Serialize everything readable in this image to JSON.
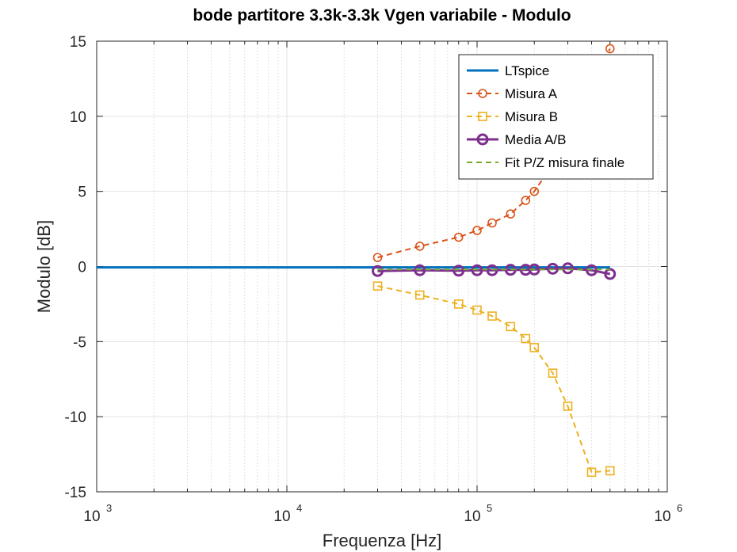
{
  "chart_data": {
    "type": "line",
    "title": "bode partitore 3.3k-3.3k Vgen variabile - Modulo",
    "xlabel": "Frequenza [Hz]",
    "ylabel": "Modulo [dB]",
    "xscale": "log",
    "xlim": [
      1000,
      1000000
    ],
    "ylim": [
      -15,
      15
    ],
    "xticks": [
      1000,
      10000,
      100000,
      1000000
    ],
    "xtick_labels": [
      {
        "base": "10",
        "exp": "3"
      },
      {
        "base": "10",
        "exp": "4"
      },
      {
        "base": "10",
        "exp": "5"
      },
      {
        "base": "10",
        "exp": "6"
      }
    ],
    "yticks": [
      -15,
      -10,
      -5,
      0,
      5,
      10,
      15
    ],
    "ytick_labels": [
      "-15",
      "-10",
      "-5",
      "0",
      "5",
      "10",
      "15"
    ],
    "grid": true,
    "legend_position": "top-right",
    "series": [
      {
        "name": "LTspice",
        "color": "#0072BD",
        "style": "solid",
        "marker": "none",
        "line_width": 3,
        "x": [
          1000,
          500000
        ],
        "y": [
          -0.06,
          -0.06
        ]
      },
      {
        "name": "Misura A",
        "color": "#D95319",
        "style": "dashed",
        "marker": "circle",
        "line_width": 2,
        "x": [
          30000,
          50000,
          80000,
          100000,
          120000,
          150000,
          180000,
          200000,
          250000,
          300000,
          400000,
          500000
        ],
        "y": [
          0.6,
          1.35,
          1.95,
          2.4,
          2.9,
          3.5,
          4.4,
          5.0,
          6.8,
          9.0,
          12.5,
          14.5
        ]
      },
      {
        "name": "Misura B",
        "color": "#EDB120",
        "style": "dashed",
        "marker": "square",
        "line_width": 2,
        "x": [
          30000,
          50000,
          80000,
          100000,
          120000,
          150000,
          180000,
          200000,
          250000,
          300000,
          400000,
          500000
        ],
        "y": [
          -1.3,
          -1.9,
          -2.5,
          -2.9,
          -3.3,
          -4.0,
          -4.8,
          -5.4,
          -7.1,
          -9.3,
          -13.7,
          -13.6
        ]
      },
      {
        "name": "Media A/B",
        "color": "#7E2F8E",
        "style": "solid",
        "marker": "circle",
        "line_width": 3,
        "x": [
          30000,
          50000,
          80000,
          100000,
          120000,
          150000,
          180000,
          200000,
          250000,
          300000,
          400000,
          500000
        ],
        "y": [
          -0.3,
          -0.25,
          -0.28,
          -0.25,
          -0.25,
          -0.22,
          -0.22,
          -0.2,
          -0.15,
          -0.12,
          -0.25,
          -0.5
        ]
      },
      {
        "name": "Fit P/Z misura finale",
        "color": "#77AC30",
        "style": "dashed",
        "marker": "none",
        "line_width": 2,
        "x": [
          30000,
          500000
        ],
        "y": [
          -0.2,
          -0.2
        ]
      }
    ]
  }
}
